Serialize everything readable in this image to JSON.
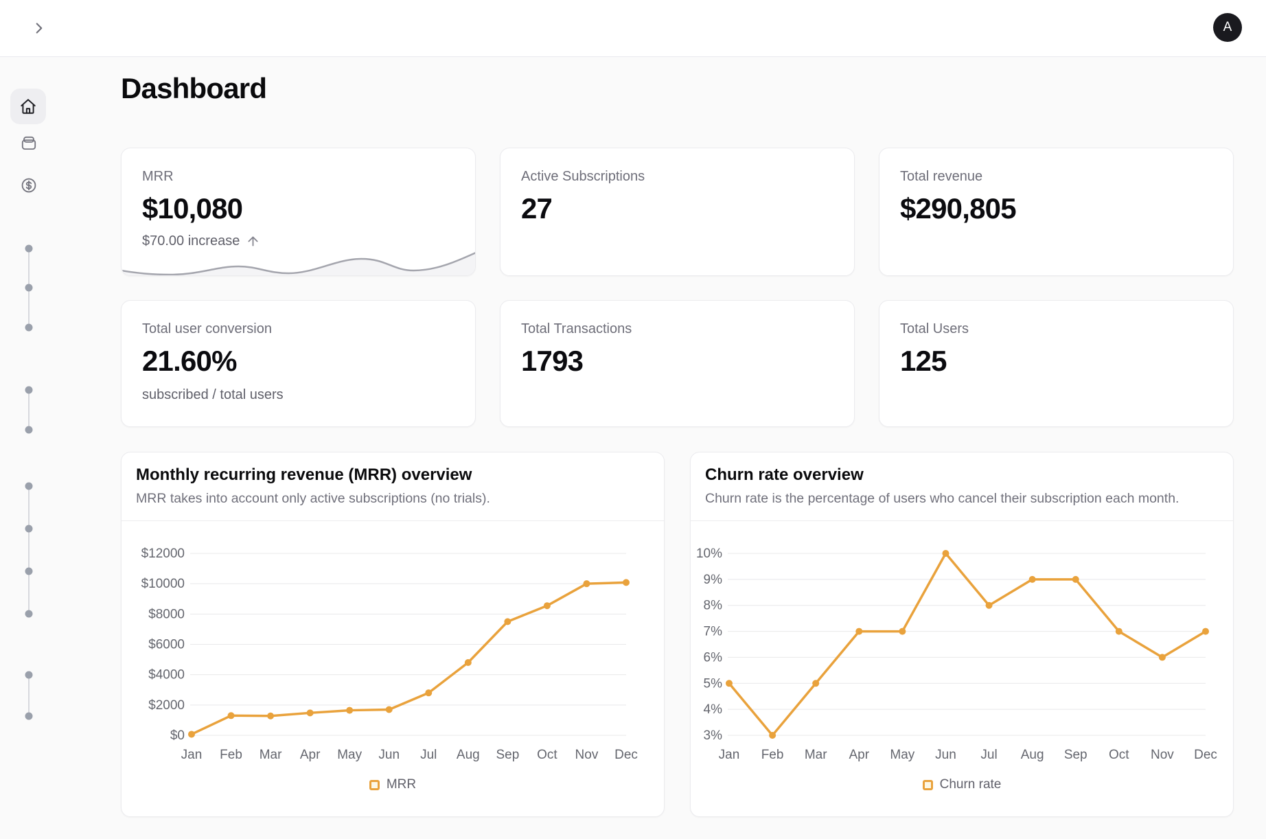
{
  "topbar": {
    "avatar_initial": "A",
    "icons": [
      "chevron-right-icon",
      "avatar"
    ]
  },
  "sidebar": {
    "icons": [
      {
        "name": "home-icon",
        "active": true
      },
      {
        "name": "wallet-icon",
        "active": false
      },
      {
        "name": "dollar-circle-icon",
        "active": false
      }
    ],
    "skeleton_dot_groups": [
      3,
      2,
      4,
      2
    ]
  },
  "page": {
    "title": "Dashboard"
  },
  "stats": [
    {
      "label": "MRR",
      "value": "$10,080",
      "delta": "$70.00 increase",
      "delta_icon": "arrow-up-icon"
    },
    {
      "label": "Active Subscriptions",
      "value": "27"
    },
    {
      "label": "Total revenue",
      "value": "$290,805"
    },
    {
      "label": "Total user conversion",
      "value": "21.60%",
      "note": "subscribed / total users"
    },
    {
      "label": "Total Transactions",
      "value": "1793"
    },
    {
      "label": "Total Users",
      "value": "125"
    }
  ],
  "chart_data": [
    {
      "type": "line",
      "title": "Monthly recurring revenue (MRR) overview",
      "subtitle": "MRR takes into account only active subscriptions (no trials).",
      "categories": [
        "Jan",
        "Feb",
        "Mar",
        "Apr",
        "May",
        "Jun",
        "Jul",
        "Aug",
        "Sep",
        "Oct",
        "Nov",
        "Dec"
      ],
      "series": [
        {
          "name": "MRR",
          "values": [
            70,
            1300,
            1280,
            1480,
            1650,
            1700,
            2800,
            4800,
            7500,
            8550,
            10000,
            10080
          ]
        }
      ],
      "ylim": [
        0,
        12000
      ],
      "yticks": [
        0,
        2000,
        4000,
        6000,
        8000,
        10000,
        12000
      ],
      "tick_prefix": "$",
      "tick_suffix": "",
      "grid": true,
      "legend_position": "bottom",
      "line_color": "#E9A23C",
      "layout": {
        "left_gutter": 102,
        "right_pad": 55
      }
    },
    {
      "type": "line",
      "title": "Churn rate overview",
      "subtitle": "Churn rate is the percentage of users who cancel their subscription each month.",
      "categories": [
        "Jan",
        "Feb",
        "Mar",
        "Apr",
        "May",
        "Jun",
        "Jul",
        "Aug",
        "Sep",
        "Oct",
        "Nov",
        "Dec"
      ],
      "series": [
        {
          "name": "Churn rate",
          "values": [
            5,
            3,
            5,
            7,
            7,
            10,
            8,
            9,
            9,
            7,
            6,
            7
          ]
        }
      ],
      "ylim": [
        3,
        10
      ],
      "yticks": [
        3,
        4,
        5,
        6,
        7,
        8,
        9,
        10
      ],
      "tick_prefix": "",
      "tick_suffix": "%",
      "grid": true,
      "legend_position": "bottom",
      "line_color": "#E9A23C",
      "layout": {
        "left_gutter": 56,
        "right_pad": 40
      }
    }
  ],
  "colors": {
    "accent": "#E9A23C",
    "grid_line": "#e8e8ea",
    "tick_text": "#64666e",
    "sparkline": "#a4a5ad",
    "sparkline_fill": "#f4f4f6"
  }
}
